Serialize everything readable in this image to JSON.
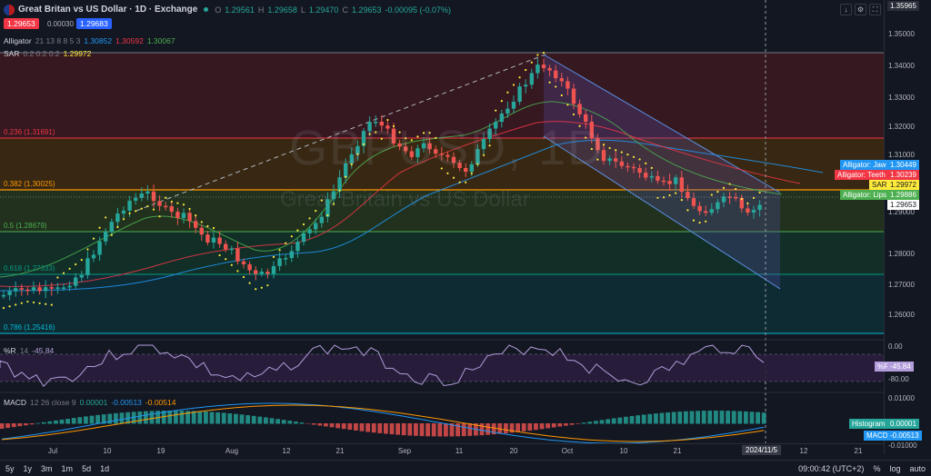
{
  "header": {
    "title": "Great Britan vs US Dollar · 1D · Exchange",
    "open_label": "O",
    "open": "1.29561",
    "high_label": "H",
    "high": "1.29658",
    "low_label": "L",
    "low": "1.29470",
    "close_label": "C",
    "close": "1.29653",
    "change": "-0.00095 (-0.07%)",
    "sell_price": "1.29653",
    "spread": "0.00030",
    "buy_price": "1.29683"
  },
  "indicators": {
    "alligator_name": "Alligator",
    "alligator_params": "21 13 8 8 5 3",
    "alligator_jaw": "1.30852",
    "alligator_teeth": "1.30592",
    "alligator_lips": "1.30067",
    "sar_name": "SAR",
    "sar_params": "0.2 0.2 0.2",
    "sar_value": "1.29972"
  },
  "watermark": {
    "ticker": "GBPUSD, 1D",
    "name": "Great Britain vs US Dollar"
  },
  "fib_levels": [
    {
      "label": "0.236 (1.31691)",
      "color": "#f23645"
    },
    {
      "label": "0.382 (1.30025)",
      "color": "#ff9800"
    },
    {
      "label": "0.5 (1.28679)",
      "color": "#4caf50"
    },
    {
      "label": "0.618 (1.27333)",
      "color": "#089981"
    },
    {
      "label": "0.786 (1.25416)",
      "color": "#00bcd4"
    }
  ],
  "price_axis": {
    "top_label": "1.35965",
    "ticks": [
      "1.35000",
      "1.34000",
      "1.33000",
      "1.32000",
      "1.31000",
      "1.30000",
      "1.29000",
      "1.28000",
      "1.27000",
      "1.26000"
    ],
    "labels": [
      {
        "name": "Alligator: Jaw",
        "value": "1.30449",
        "color": "#2196f3"
      },
      {
        "name": "Alligator: Teeth",
        "value": "1.30239",
        "color": "#f23645"
      },
      {
        "name": "SAR",
        "value": "1.29972",
        "color": "#ffeb3b"
      },
      {
        "name": "Alligator: Lips",
        "value": "1.29886",
        "color": "#4caf50"
      },
      {
        "name": "",
        "value": "1.29653",
        "color": "#ffffff"
      }
    ]
  },
  "wr": {
    "name": "%R",
    "params": "14",
    "value": "-45.84",
    "axis_label": "%R",
    "ticks": [
      "0.00",
      "-20.00",
      "-80.00"
    ]
  },
  "macd": {
    "name": "MACD",
    "params": "12 26 close 9",
    "hist": "0.00001",
    "macd": "-0.00513",
    "signal": "-0.00514",
    "ticks": [
      "0.01000",
      "0.00000",
      "-0.01000"
    ],
    "hist_label": "Histogram",
    "hist_value": "0.00001",
    "macd_label": "MACD",
    "macd_value": "-0.00513"
  },
  "time_axis": [
    "Jul",
    "10",
    "19",
    "Aug",
    "12",
    "21",
    "Sep",
    "11",
    "20",
    "Oct",
    "10",
    "21",
    "12",
    "21"
  ],
  "current_date": "2024/11/5",
  "bottom_bar": {
    "ranges": [
      "5y",
      "1y",
      "3m",
      "1m",
      "5d",
      "1d"
    ],
    "clock": "09:00:42 (UTC+2)",
    "pct": "%",
    "log": "log",
    "auto": "auto"
  },
  "colors": {
    "up": "#26a69a",
    "down": "#ef5350",
    "bg": "#131722"
  }
}
